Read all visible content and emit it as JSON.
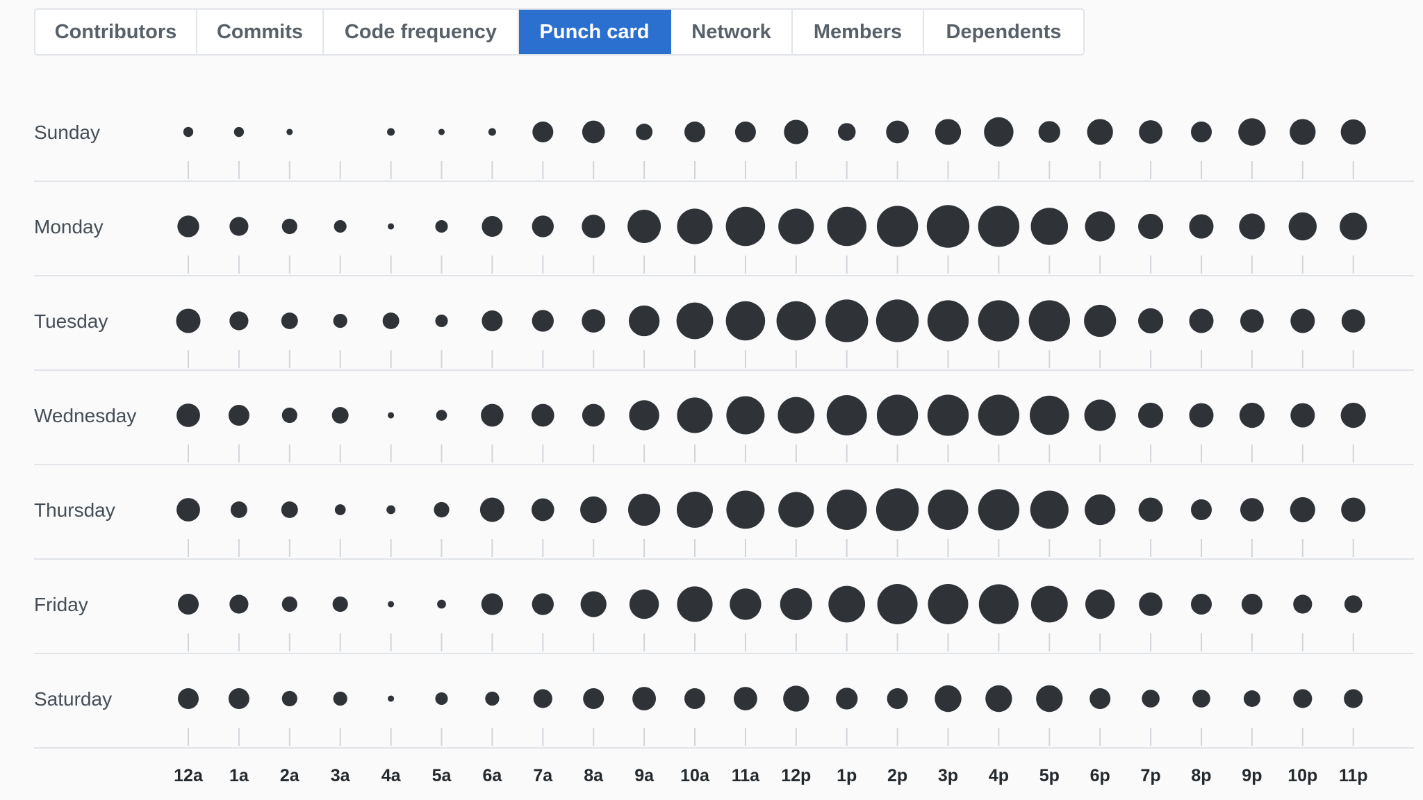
{
  "tabs": [
    {
      "label": "Contributors",
      "selected": false
    },
    {
      "label": "Commits",
      "selected": false
    },
    {
      "label": "Code frequency",
      "selected": false
    },
    {
      "label": "Punch card",
      "selected": true
    },
    {
      "label": "Network",
      "selected": false
    },
    {
      "label": "Members",
      "selected": false
    },
    {
      "label": "Dependents",
      "selected": false
    }
  ],
  "colors": {
    "accent": "#2b6fcf",
    "dot": "#2f3338",
    "axis": "#e1e4e8",
    "tick": "#d1d5da"
  },
  "chart_data": {
    "type": "scatter",
    "subtype": "punch-card",
    "title": "",
    "xlabel": "",
    "ylabel": "",
    "days": [
      "Sunday",
      "Monday",
      "Tuesday",
      "Wednesday",
      "Thursday",
      "Friday",
      "Saturday"
    ],
    "hours": [
      "12a",
      "1a",
      "2a",
      "3a",
      "4a",
      "5a",
      "6a",
      "7a",
      "8a",
      "9a",
      "10a",
      "11a",
      "12p",
      "1p",
      "2p",
      "3p",
      "4p",
      "5p",
      "6p",
      "7p",
      "8p",
      "9p",
      "10p",
      "11p"
    ],
    "size_scale_note": "relative commit activity, 0 = none, 100 = maximum",
    "values": [
      [
        5,
        5,
        2,
        0,
        3,
        2,
        3,
        22,
        26,
        14,
        22,
        22,
        30,
        16,
        26,
        34,
        44,
        24,
        34,
        28,
        22,
        38,
        34,
        32
      ],
      [
        24,
        18,
        12,
        8,
        2,
        8,
        22,
        24,
        28,
        56,
        64,
        78,
        64,
        78,
        86,
        92,
        86,
        70,
        46,
        32,
        30,
        34,
        40,
        38
      ],
      [
        30,
        18,
        14,
        10,
        14,
        8,
        22,
        24,
        28,
        48,
        68,
        78,
        78,
        92,
        92,
        86,
        86,
        86,
        52,
        32,
        30,
        28,
        30,
        28
      ],
      [
        28,
        22,
        12,
        14,
        2,
        6,
        26,
        26,
        26,
        46,
        64,
        74,
        68,
        82,
        86,
        86,
        86,
        78,
        50,
        32,
        30,
        32,
        30,
        32
      ],
      [
        28,
        14,
        14,
        6,
        4,
        12,
        30,
        26,
        36,
        52,
        66,
        74,
        64,
        82,
        92,
        82,
        86,
        74,
        48,
        30,
        22,
        28,
        32,
        30
      ],
      [
        22,
        18,
        12,
        12,
        2,
        4,
        24,
        24,
        34,
        44,
        64,
        50,
        52,
        68,
        82,
        82,
        80,
        68,
        44,
        28,
        22,
        22,
        18,
        16
      ],
      [
        22,
        22,
        12,
        10,
        2,
        8,
        10,
        18,
        22,
        28,
        22,
        28,
        34,
        24,
        22,
        36,
        36,
        36,
        22,
        16,
        16,
        14,
        18,
        18
      ]
    ],
    "grid": false,
    "legend": "none"
  }
}
